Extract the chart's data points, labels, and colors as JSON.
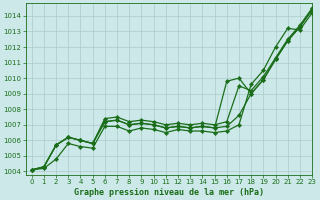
{
  "title": "Graphe pression niveau de la mer (hPa)",
  "xlim": [
    -0.5,
    23
  ],
  "ylim": [
    1003.8,
    1014.8
  ],
  "yticks": [
    1004,
    1005,
    1006,
    1007,
    1008,
    1009,
    1010,
    1011,
    1012,
    1013,
    1014
  ],
  "xticks": [
    0,
    1,
    2,
    3,
    4,
    5,
    6,
    7,
    8,
    9,
    10,
    11,
    12,
    13,
    14,
    15,
    16,
    17,
    18,
    19,
    20,
    21,
    22,
    23
  ],
  "bg_color": "#cce8e8",
  "line_color": "#1a6e1a",
  "grid_color": "#aacccc",
  "series": [
    [
      1004.1,
      1004.2,
      1004.8,
      1005.8,
      1005.6,
      1005.5,
      1006.9,
      1006.9,
      1006.6,
      1006.8,
      1006.7,
      1006.5,
      1006.7,
      1006.6,
      1006.6,
      1006.5,
      1006.6,
      1007.0,
      1009.6,
      1010.5,
      1012.0,
      1013.2,
      1013.1,
      1014.2
    ],
    [
      1004.1,
      1004.3,
      1005.7,
      1006.2,
      1006.0,
      1005.8,
      1007.2,
      1007.3,
      1007.0,
      1007.1,
      1007.0,
      1006.8,
      1006.9,
      1006.8,
      1006.9,
      1006.8,
      1006.9,
      1007.6,
      1009.0,
      1009.9,
      1011.2,
      1012.4,
      1013.3,
      1014.4
    ],
    [
      1004.1,
      1004.3,
      1005.7,
      1006.2,
      1006.0,
      1005.8,
      1007.2,
      1007.3,
      1007.0,
      1007.1,
      1007.0,
      1006.8,
      1006.9,
      1006.8,
      1006.9,
      1006.8,
      1009.8,
      1010.0,
      1009.0,
      1009.9,
      1011.2,
      1012.4,
      1013.3,
      1014.4
    ],
    [
      1004.1,
      1004.3,
      1005.7,
      1006.2,
      1006.0,
      1005.8,
      1007.4,
      1007.5,
      1007.2,
      1007.3,
      1007.2,
      1007.0,
      1007.1,
      1007.0,
      1007.1,
      1007.0,
      1007.2,
      1009.5,
      1009.2,
      1010.1,
      1011.3,
      1012.5,
      1013.4,
      1014.5
    ]
  ]
}
